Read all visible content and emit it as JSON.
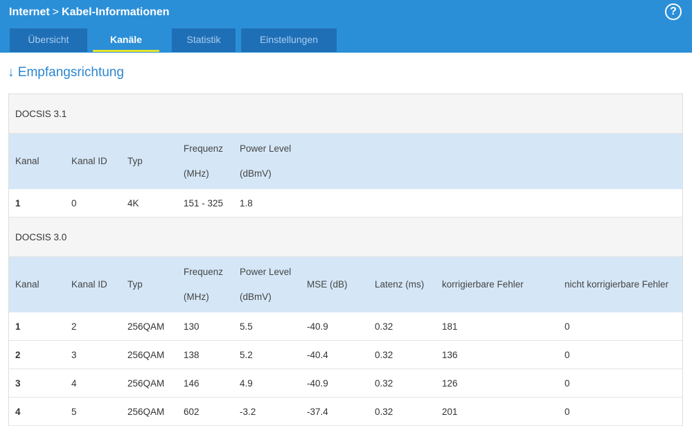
{
  "header": {
    "breadcrumb": [
      "Internet",
      "Kabel-Informationen"
    ],
    "help": "?"
  },
  "tabs": {
    "items": [
      "Übersicht",
      "Kanäle",
      "Statistik",
      "Einstellungen"
    ],
    "active": 1
  },
  "heading": "Empfangsrichtung",
  "sections": [
    {
      "title": "DOCSIS 3.1",
      "columns": [
        "Kanal",
        "Kanal ID",
        "Typ",
        "Frequenz\n(MHz)",
        "Power Level\n(dBmV)"
      ],
      "rows": [
        [
          "1",
          "0",
          "4K",
          "151 - 325",
          "1.8"
        ]
      ]
    },
    {
      "title": "DOCSIS 3.0",
      "columns": [
        "Kanal",
        "Kanal ID",
        "Typ",
        "Frequenz\n(MHz)",
        "Power Level\n(dBmV)",
        "MSE (dB)",
        "Latenz (ms)",
        "korrigierbare Fehler",
        "nicht korrigierbare Fehler"
      ],
      "rows": [
        [
          "1",
          "2",
          "256QAM",
          "130",
          "5.5",
          "-40.9",
          "0.32",
          "181",
          "0"
        ],
        [
          "2",
          "3",
          "256QAM",
          "138",
          "5.2",
          "-40.4",
          "0.32",
          "136",
          "0"
        ],
        [
          "3",
          "4",
          "256QAM",
          "146",
          "4.9",
          "-40.9",
          "0.32",
          "126",
          "0"
        ],
        [
          "4",
          "5",
          "256QAM",
          "602",
          "-3.2",
          "-37.4",
          "0.32",
          "201",
          "0"
        ]
      ]
    }
  ]
}
